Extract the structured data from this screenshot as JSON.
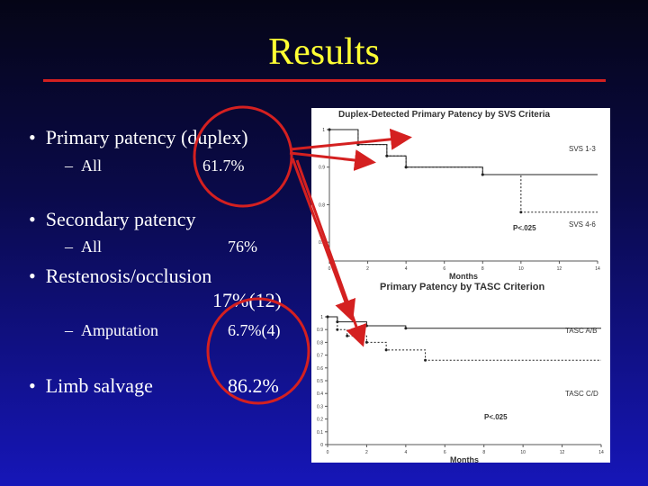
{
  "slide": {
    "title": "Results",
    "bullets": [
      {
        "label": "Primary patency (duplex)",
        "sub": {
          "label": "All",
          "value": "61.7%"
        }
      },
      {
        "label": "Secondary patency",
        "sub": {
          "label": "All",
          "value": "76%"
        }
      },
      {
        "label": "Restenosis/occlusion",
        "value": "17%(12)",
        "sub": {
          "label": "Amputation",
          "value": "6.7%(4)"
        }
      },
      {
        "label": "Limb salvage",
        "value": "86.2%"
      }
    ],
    "colors": {
      "title": "#ffff33",
      "accent_red": "#d42020",
      "background": "#1616b8"
    }
  },
  "chart_data": [
    {
      "type": "line",
      "title": "Duplex-Detected Primary Patency by SVS Criteria",
      "xlabel": "Months",
      "x_ticks": [
        "0",
        "2",
        "4",
        "6",
        "8",
        "10",
        "12",
        "14"
      ],
      "y_ticks": [
        "1",
        "0.9",
        "0.8",
        "0.7"
      ],
      "ylim": [
        0.65,
        1.0
      ],
      "xlim": [
        0,
        14
      ],
      "series": [
        {
          "name": "SVS 1-3",
          "x": [
            0,
            1.5,
            1.5,
            3,
            3,
            4,
            4,
            8,
            8,
            14
          ],
          "y": [
            1,
            1,
            0.96,
            0.96,
            0.93,
            0.93,
            0.9,
            0.9,
            0.88,
            0.88
          ]
        },
        {
          "name": "SVS 4-6",
          "x": [
            0,
            1.5,
            1.5,
            3,
            3,
            4,
            4,
            8,
            8,
            10,
            10,
            14
          ],
          "y": [
            1,
            1,
            0.96,
            0.96,
            0.93,
            0.93,
            0.9,
            0.9,
            0.88,
            0.88,
            0.78,
            0.78
          ]
        }
      ],
      "annotation": "P<.025"
    },
    {
      "type": "line",
      "title": "Primary Patency by TASC Criterion",
      "xlabel": "Months",
      "x_ticks": [
        "0",
        "2",
        "4",
        "6",
        "8",
        "10",
        "12",
        "14"
      ],
      "y_ticks": [
        "1",
        "0.9",
        "0.8",
        "0.7",
        "0.6",
        "0.5",
        "0.4",
        "0.3",
        "0.2",
        "0.1",
        "0"
      ],
      "ylim": [
        0,
        1.0
      ],
      "xlim": [
        0,
        14
      ],
      "series": [
        {
          "name": "TASC A/B",
          "x": [
            0,
            0.5,
            0.5,
            2,
            2,
            4,
            4,
            14
          ],
          "y": [
            1,
            1,
            0.96,
            0.96,
            0.93,
            0.93,
            0.91,
            0.91
          ]
        },
        {
          "name": "TASC C/D",
          "x": [
            0,
            0.5,
            0.5,
            1,
            1,
            2,
            2,
            3,
            3,
            5,
            5,
            14
          ],
          "y": [
            1,
            1,
            0.9,
            0.9,
            0.85,
            0.85,
            0.8,
            0.8,
            0.74,
            0.74,
            0.66,
            0.66
          ]
        }
      ],
      "annotation": "P<.025"
    }
  ]
}
